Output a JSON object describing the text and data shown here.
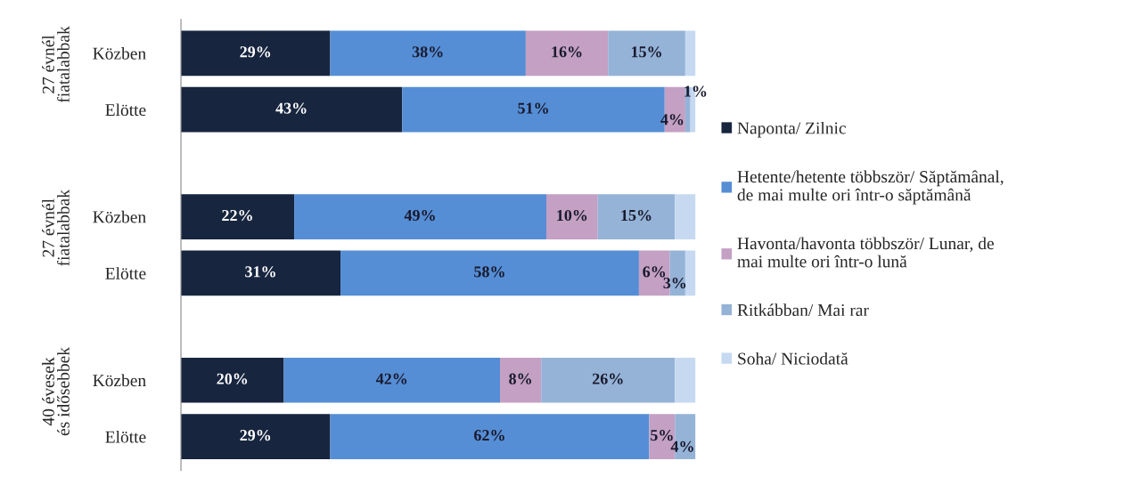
{
  "chart_data": {
    "type": "bar",
    "orientation": "horizontal",
    "stacked": true,
    "categories": [
      "Közben",
      "Elötte",
      "Közben",
      "Elötte",
      "Közben",
      "Elötte"
    ],
    "annotations": [
      "27 évnél fiatalabbak",
      "27 évnél fiatalabbak",
      "40 évesek és idősebbek"
    ],
    "series": [
      {
        "name": "Naponta/ Zilnic",
        "color": "#17253f",
        "values": [
          29,
          43,
          22,
          31,
          20,
          29
        ],
        "value_labels": [
          "29%",
          "43%",
          "22%",
          "31%",
          "20%",
          "29%"
        ]
      },
      {
        "name": "Hetente/hetente többször/ Săptămânal,\nde mai multe ori într-o săptămână",
        "color": "#558ed5",
        "values": [
          38,
          51,
          49,
          58,
          42,
          62
        ],
        "value_labels": [
          "38%",
          "51%",
          "49%",
          "58%",
          "42%",
          "62%"
        ]
      },
      {
        "name": "Havonta/havonta többször/ Lunar, de\nmai multe ori într-o lună",
        "color": "#c3a0c4",
        "values": [
          16,
          4,
          10,
          6,
          8,
          5
        ],
        "value_labels": [
          "16%",
          "4%",
          "10%",
          "6%",
          "8%",
          "5%"
        ]
      },
      {
        "name": "Ritkábban/ Mai rar",
        "color": "#95b3d7",
        "values": [
          15,
          1,
          15,
          3,
          26,
          4
        ],
        "value_labels": [
          "15%",
          "1%",
          "15%",
          "3%",
          "26%",
          "4%"
        ]
      },
      {
        "name": "Soha/ Niciodată",
        "color": "#c6d9f1",
        "values": [
          2,
          1,
          4,
          2,
          4,
          0
        ],
        "value_labels": [
          null,
          null,
          null,
          null,
          null,
          null
        ]
      }
    ],
    "legend": "right"
  }
}
